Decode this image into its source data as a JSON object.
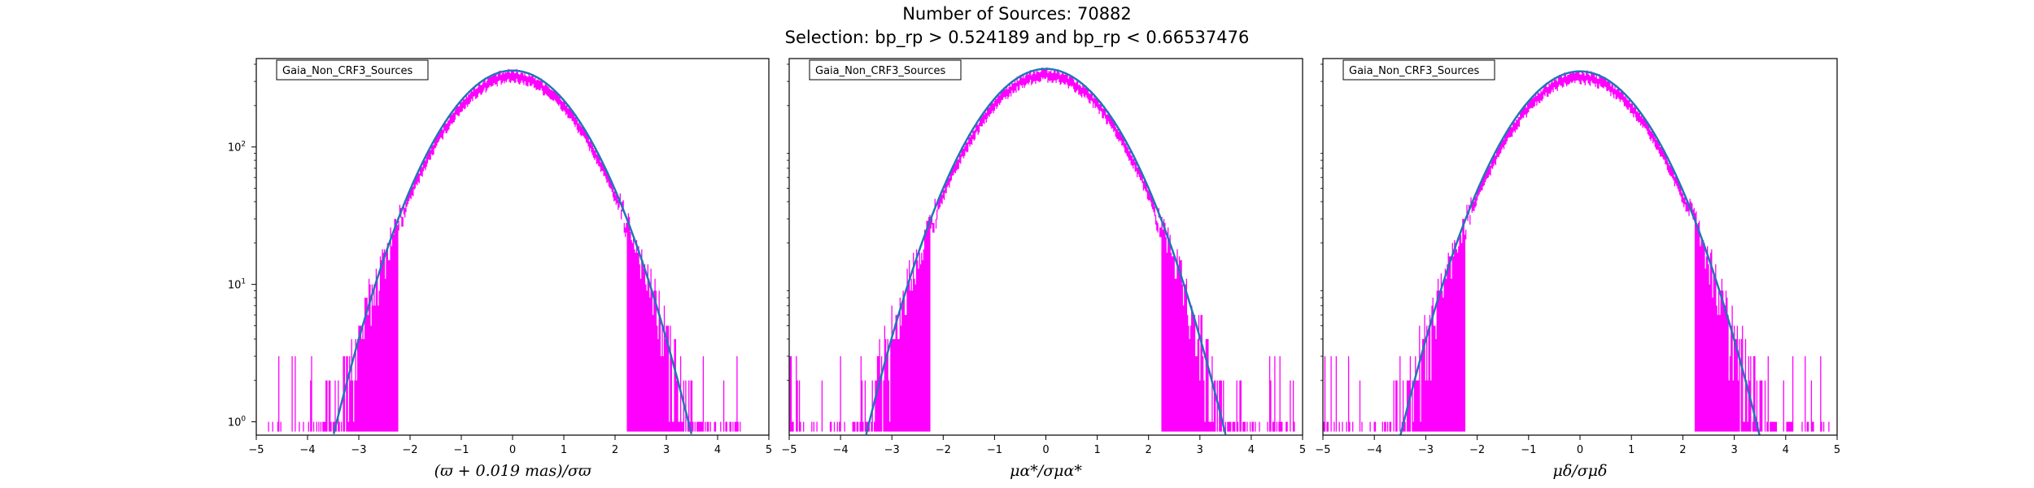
{
  "figure": {
    "title": "Number of Sources: 70882",
    "subtitle": "Selection: bp_rp > 0.524189 and bp_rp < 0.66537476"
  },
  "colors": {
    "histogram": "#ff00ff",
    "fit": "#1f77b4",
    "axes": "#000000"
  },
  "chart_data": [
    {
      "type": "histogram+line",
      "legend": "Gaia_Non_CRF3_Sources",
      "xlabel": "(ϖ + 0.019 mas)/σϖ",
      "xlim": [
        -5,
        5
      ],
      "ylim": [
        0.8,
        440
      ],
      "yscale": "log",
      "xticks": [
        -5,
        -4,
        -3,
        -2,
        -1,
        0,
        1,
        2,
        3,
        4,
        5
      ],
      "yticks": [
        "10^0",
        "10^1",
        "10^2"
      ],
      "fit": {
        "type": "gaussian",
        "amplitude": 360,
        "mean": 0,
        "sigma": 1.0
      },
      "histogram_support": [
        -4.9,
        4.5
      ]
    },
    {
      "type": "histogram+line",
      "legend": "Gaia_Non_CRF3_Sources",
      "xlabel": "μα*/σμα*",
      "xlim": [
        -5,
        5
      ],
      "ylim": [
        0.8,
        440
      ],
      "yscale": "log",
      "xticks": [
        -5,
        -4,
        -3,
        -2,
        -1,
        0,
        1,
        2,
        3,
        4,
        5
      ],
      "yticks": [],
      "fit": {
        "type": "gaussian",
        "amplitude": 370,
        "mean": 0,
        "sigma": 1.0
      },
      "histogram_support": [
        -5.0,
        5.0
      ]
    },
    {
      "type": "histogram+line",
      "legend": "Gaia_Non_CRF3_Sources",
      "xlabel": "μδ/σμδ",
      "xlim": [
        -5,
        5
      ],
      "ylim": [
        0.8,
        440
      ],
      "yscale": "log",
      "xticks": [
        -5,
        -4,
        -3,
        -2,
        -1,
        0,
        1,
        2,
        3,
        4,
        5
      ],
      "yticks": [],
      "fit": {
        "type": "gaussian",
        "amplitude": 355,
        "mean": 0,
        "sigma": 1.0
      },
      "histogram_support": [
        -5.0,
        4.9
      ]
    }
  ]
}
